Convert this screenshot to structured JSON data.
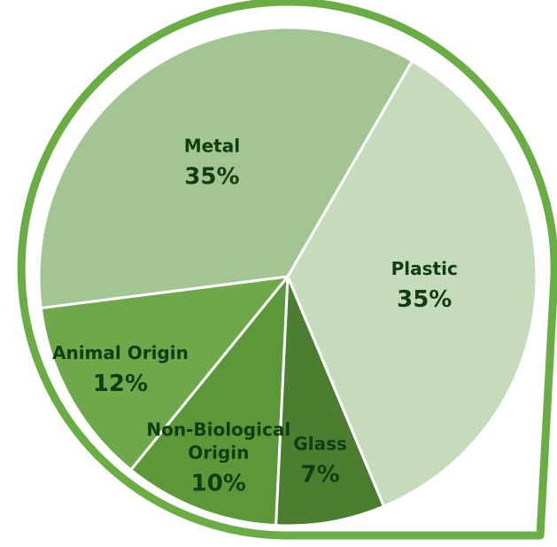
{
  "chart_data": {
    "type": "pie",
    "slices": [
      {
        "label": [
          "Metal"
        ],
        "value": 35,
        "display": "35%",
        "color": "#a3c593"
      },
      {
        "label": [
          "Animal Origin"
        ],
        "value": 12,
        "display": "12%",
        "color": "#6ea84a"
      },
      {
        "label": [
          "Non-Biological",
          "Origin"
        ],
        "value": 10,
        "display": "10%",
        "color": "#5c973a"
      },
      {
        "label": [
          "Glass"
        ],
        "value": 7,
        "display": "7%",
        "color": "#4c7e31"
      },
      {
        "label": [
          "Plastic"
        ],
        "value": 35,
        "display": "35%",
        "color": "#c5dbbb"
      }
    ]
  },
  "colors": {
    "frame": "#6aad45",
    "slice_divider": "#ffffff",
    "label_text": "#123d12"
  }
}
